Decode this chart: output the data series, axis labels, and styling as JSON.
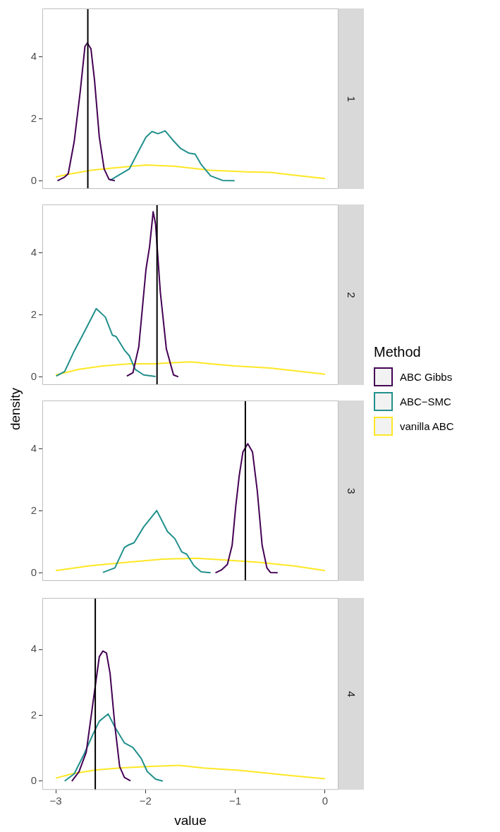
{
  "chart_data": [
    {
      "type": "line",
      "annotations": [
        "1"
      ],
      "xlim": [
        -3.15,
        0.15
      ],
      "xticks": [
        -3,
        -2,
        -1,
        0
      ],
      "ylim": [
        -0.265,
        5.565
      ],
      "yticks": [
        0,
        2,
        4
      ],
      "tick_labels": "y",
      "series": [
        {
          "color": "#440154",
          "x": [
            -2.981,
            -2.901,
            -2.861,
            -2.795,
            -2.728,
            -2.675,
            -2.648,
            -2.608,
            -2.568,
            -2.515,
            -2.461,
            -2.408,
            -2.341
          ],
          "values": [
            0,
            0.12,
            0.23,
            1.26,
            2.87,
            4.34,
            4.45,
            4.26,
            3.24,
            1.41,
            0.38,
            0.05,
            0
          ]
        },
        {
          "color": "#21908c",
          "x": [
            -2.395,
            -2.288,
            -2.181,
            -2.075,
            -1.995,
            -1.928,
            -1.861,
            -1.781,
            -1.701,
            -1.608,
            -1.515,
            -1.448,
            -1.381,
            -1.275,
            -1.141,
            -1.008
          ],
          "values": [
            0.01,
            0.2,
            0.38,
            0.97,
            1.41,
            1.59,
            1.52,
            1.61,
            1.33,
            1.04,
            0.89,
            0.86,
            0.53,
            0.16,
            0.01,
            0
          ]
        },
        {
          "color": "#fde725",
          "x": [
            -3,
            -2.875,
            -2.608,
            -2.341,
            -1.995,
            -1.675,
            -1.275,
            -0.875,
            -0.608,
            -0.341,
            0
          ],
          "values": [
            0.12,
            0.2,
            0.34,
            0.42,
            0.51,
            0.47,
            0.34,
            0.29,
            0.27,
            0.18,
            0.07
          ]
        }
      ],
      "ref_lines": [
        {
          "axis": "x",
          "value": -2.643,
          "color": "#000000"
        }
      ]
    },
    {
      "type": "line",
      "annotations": [
        "2"
      ],
      "ylabel": "density",
      "legend": "right",
      "legend_title": "Method",
      "xlim": [
        -3.15,
        0.15
      ],
      "xticks": [
        -3,
        -2,
        -1,
        0
      ],
      "ylim": [
        -0.265,
        5.565
      ],
      "yticks": [
        0,
        2,
        4
      ],
      "tick_labels": "y",
      "series": [
        {
          "name": "ABC Gibbs",
          "color": "#440154",
          "x": [
            -2.208,
            -2.141,
            -2.075,
            -1.995,
            -1.955,
            -1.915,
            -1.888,
            -1.835,
            -1.768,
            -1.688,
            -1.635
          ],
          "values": [
            0.02,
            0.13,
            0.97,
            3.47,
            4.2,
            5.33,
            4.93,
            2.73,
            0.9,
            0.06,
            0
          ]
        },
        {
          "name": "ABC−SMC",
          "color": "#21908c",
          "x": [
            -2.995,
            -2.901,
            -2.795,
            -2.675,
            -2.549,
            -2.448,
            -2.368,
            -2.328,
            -2.235,
            -2.181,
            -2.115,
            -2.021,
            -1.888
          ],
          "values": [
            0.02,
            0.17,
            0.83,
            1.49,
            2.2,
            1.93,
            1.34,
            1.3,
            0.86,
            0.68,
            0.24,
            0.06,
            0.01
          ]
        },
        {
          "name": "vanilla ABC",
          "color": "#fde725",
          "x": [
            -3,
            -2.741,
            -2.475,
            -2.181,
            -1.888,
            -1.728,
            -1.488,
            -1.275,
            -1.008,
            -0.608,
            -0.208,
            0
          ],
          "values": [
            0.06,
            0.24,
            0.35,
            0.42,
            0.42,
            0.45,
            0.48,
            0.42,
            0.35,
            0.28,
            0.15,
            0.08
          ]
        }
      ],
      "ref_lines": [
        {
          "axis": "x",
          "value": -1.872,
          "color": "#000000"
        }
      ]
    },
    {
      "type": "line",
      "annotations": [
        "3"
      ],
      "xlim": [
        -3.15,
        0.15
      ],
      "xticks": [
        -3,
        -2,
        -1,
        0
      ],
      "ylim": [
        -0.265,
        5.565
      ],
      "yticks": [
        0,
        2,
        4
      ],
      "tick_labels": "y",
      "series": [
        {
          "color": "#440154",
          "x": [
            -1.221,
            -1.155,
            -1.088,
            -1.035,
            -0.995,
            -0.955,
            -0.915,
            -0.861,
            -0.808,
            -0.755,
            -0.701,
            -0.648,
            -0.608,
            -0.528
          ],
          "values": [
            0,
            0.09,
            0.27,
            0.89,
            2.14,
            3.16,
            3.9,
            4.17,
            3.9,
            2.65,
            0.89,
            0.16,
            0.01,
            0
          ]
        },
        {
          "color": "#21908c",
          "x": [
            -2.475,
            -2.341,
            -2.235,
            -2.195,
            -2.128,
            -2.021,
            -1.875,
            -1.755,
            -1.675,
            -1.595,
            -1.541,
            -1.461,
            -1.381,
            -1.275
          ],
          "values": [
            0.01,
            0.16,
            0.82,
            0.89,
            0.97,
            1.48,
            2.01,
            1.33,
            1.11,
            0.67,
            0.6,
            0.23,
            0.03,
            0
          ]
        },
        {
          "color": "#fde725",
          "x": [
            -3,
            -2.608,
            -2.208,
            -1.808,
            -1.435,
            -1.141,
            -0.741,
            -0.341,
            0
          ],
          "values": [
            0.07,
            0.23,
            0.34,
            0.44,
            0.47,
            0.42,
            0.34,
            0.22,
            0.07
          ]
        }
      ],
      "ref_lines": [
        {
          "axis": "x",
          "value": -0.888,
          "color": "#000000"
        }
      ]
    },
    {
      "type": "line",
      "annotations": [
        "4"
      ],
      "xlabel": "value",
      "xlim": [
        -3.15,
        0.15
      ],
      "xticks": [
        -3,
        -2,
        -1,
        0
      ],
      "ylim": [
        -0.265,
        5.565
      ],
      "yticks": [
        0,
        2,
        4
      ],
      "series": [
        {
          "color": "#440154",
          "x": [
            -2.821,
            -2.741,
            -2.661,
            -2.581,
            -2.515,
            -2.475,
            -2.435,
            -2.395,
            -2.341,
            -2.288,
            -2.235,
            -2.168
          ],
          "values": [
            0,
            0.29,
            0.87,
            2.47,
            3.78,
            3.95,
            3.89,
            3.27,
            1.67,
            0.44,
            0.11,
            0.01
          ]
        },
        {
          "color": "#21908c",
          "x": [
            -2.901,
            -2.795,
            -2.688,
            -2.581,
            -2.515,
            -2.416,
            -2.341,
            -2.235,
            -2.141,
            -2.048,
            -1.981,
            -1.888,
            -1.808
          ],
          "values": [
            0,
            0.22,
            0.8,
            1.45,
            1.82,
            2.04,
            1.64,
            1.16,
            1.02,
            0.69,
            0.29,
            0.06,
            0
          ]
        },
        {
          "color": "#fde725",
          "x": [
            -3,
            -2.821,
            -2.555,
            -2.288,
            -1.995,
            -1.621,
            -1.355,
            -0.955,
            -0.421,
            0
          ],
          "values": [
            0.09,
            0.22,
            0.34,
            0.4,
            0.44,
            0.48,
            0.4,
            0.33,
            0.18,
            0.07
          ]
        }
      ],
      "ref_lines": [
        {
          "axis": "x",
          "value": -2.56,
          "color": "#000000"
        }
      ]
    }
  ]
}
